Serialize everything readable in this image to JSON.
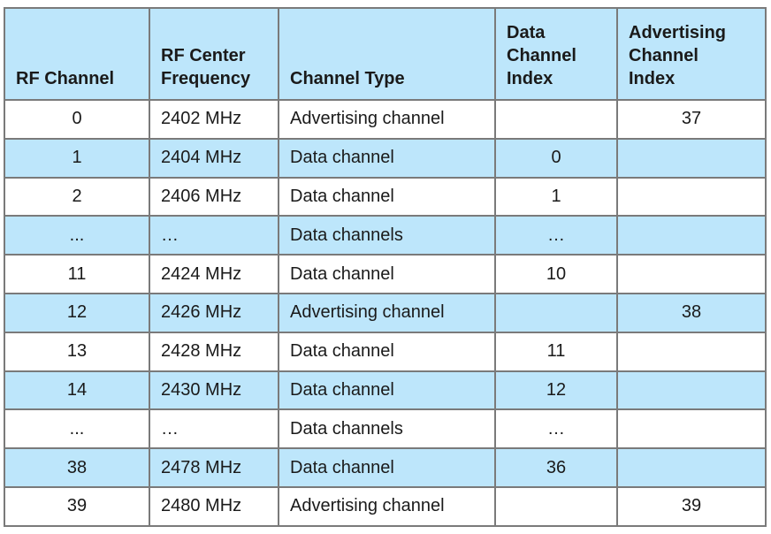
{
  "table": {
    "headers": [
      "RF Channel",
      "RF Center\nFrequency",
      "Channel Type",
      "Data\nChannel\nIndex",
      "Advertising\nChannel\nIndex"
    ],
    "rows": [
      [
        "0",
        "2402 MHz",
        "Advertising channel",
        "",
        "37"
      ],
      [
        "1",
        "2404 MHz",
        "Data channel",
        "0",
        ""
      ],
      [
        "2",
        "2406 MHz",
        "Data channel",
        "1",
        ""
      ],
      [
        "...",
        "…",
        "Data channels",
        "…",
        ""
      ],
      [
        "11",
        "2424 MHz",
        "Data channel",
        "10",
        ""
      ],
      [
        "12",
        "2426 MHz",
        "Advertising channel",
        "",
        "38"
      ],
      [
        "13",
        "2428 MHz",
        "Data channel",
        "11",
        ""
      ],
      [
        "14",
        "2430 MHz",
        "Data channel",
        "12",
        ""
      ],
      [
        "...",
        "…",
        "Data channels",
        "…",
        ""
      ],
      [
        "38",
        "2478 MHz",
        "Data channel",
        "36",
        ""
      ],
      [
        "39",
        "2480 MHz",
        "Advertising channel",
        "",
        "39"
      ]
    ]
  },
  "colors": {
    "header_bg": "#bde6fb",
    "stripe_bg": "#bde6fb",
    "border": "#7a7a7a"
  }
}
